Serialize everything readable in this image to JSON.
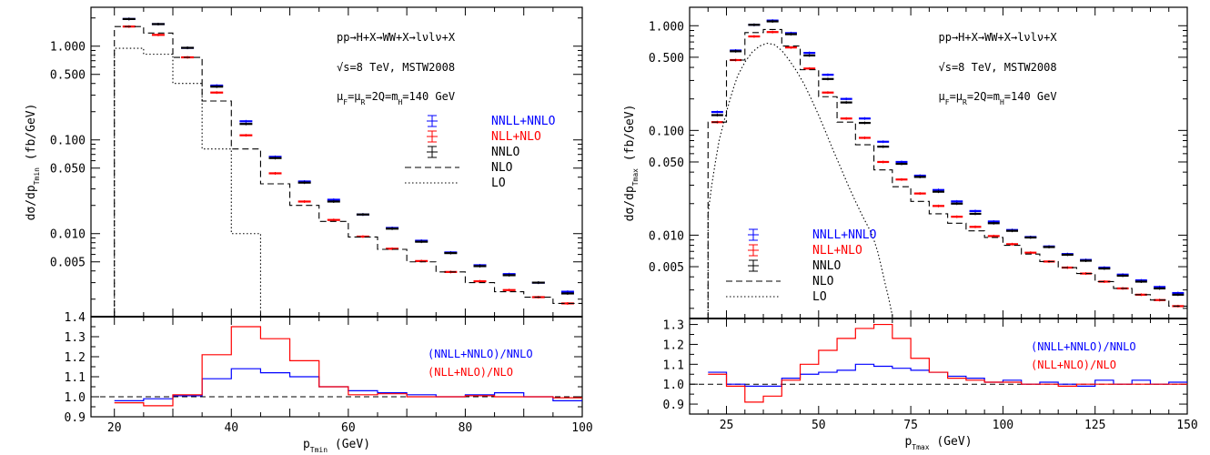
{
  "colors": {
    "nnll": "#0000ff",
    "nll": "#ff0000",
    "nnlo": "#000000",
    "nlo": "#000000",
    "lo": "#000000"
  },
  "chart_data": [
    {
      "type": "line",
      "main": {
        "ylabel": "dσ/dp_Tmin (fb/GeV)",
        "yscale": "log",
        "xlim": [
          16,
          100
        ],
        "ylim": [
          0.0013,
          2.6
        ],
        "yticks": [
          1.0,
          0.5,
          0.1,
          0.05,
          0.01,
          0.005
        ],
        "ytick_labels": [
          "1.000",
          "0.500",
          "0.100",
          "0.050",
          "0.010",
          "0.005"
        ],
        "annotations": [
          "pp→H+X→WW+X→lνlν+X",
          "√s=8 TeV, MSTW2008",
          "μ_F=μ_R=2Q=m_H=140 GeV"
        ],
        "legend": [
          {
            "label": "NNLL+NNLO",
            "style": "errorbar",
            "color": "#0000ff"
          },
          {
            "label": "NLL+NLO",
            "style": "errorbar",
            "color": "#ff0000"
          },
          {
            "label": "NNLO",
            "style": "errorbar",
            "color": "#000000"
          },
          {
            "label": "NLO",
            "style": "dashed",
            "color": "#000000"
          },
          {
            "label": "LO",
            "style": "dotted",
            "color": "#000000"
          }
        ],
        "bin_edges": [
          20,
          25,
          30,
          35,
          40,
          45,
          50,
          55,
          60,
          65,
          70,
          75,
          80,
          85,
          90,
          95,
          100
        ],
        "series": [
          {
            "name": "NNLL+NNLO",
            "style": "points",
            "values": [
              1.95,
              1.72,
              0.96,
              0.38,
              0.158,
              0.066,
              0.036,
              0.023,
              0.016,
              0.0115,
              0.0084,
              0.0063,
              0.0046,
              0.0037,
              0.003,
              0.0024
            ]
          },
          {
            "name": "NLL+NLO",
            "style": "points",
            "values": [
              1.62,
              1.32,
              0.76,
              0.32,
              0.112,
              0.044,
              0.022,
              0.014,
              0.0093,
              0.0069,
              0.0051,
              0.0039,
              0.0031,
              0.0025,
              0.0021,
              0.0018
            ]
          },
          {
            "name": "NNLO",
            "style": "points",
            "values": [
              1.95,
              1.72,
              0.96,
              0.37,
              0.148,
              0.064,
              0.035,
              0.022,
              0.016,
              0.0113,
              0.0082,
              0.0062,
              0.0045,
              0.0036,
              0.003,
              0.0023
            ]
          },
          {
            "name": "NLO",
            "style": "dashed",
            "values": [
              1.62,
              1.38,
              0.76,
              0.26,
              0.08,
              0.034,
              0.02,
              0.0135,
              0.0092,
              0.0068,
              0.005,
              0.0039,
              0.003,
              0.0024,
              0.0021,
              0.0018
            ]
          },
          {
            "name": "LO",
            "style": "dotted",
            "values": [
              0.95,
              0.82,
              0.4,
              0.08,
              0.01,
              0.0005
            ]
          }
        ]
      },
      "ratio": {
        "xlabel": "p_Tmin (GeV)",
        "ylim": [
          0.9,
          1.4
        ],
        "yticks": [
          0.9,
          1.0,
          1.1,
          1.2,
          1.3,
          1.4
        ],
        "ytick_labels": [
          "0.9",
          "1.0",
          "1.1",
          "1.2",
          "1.3",
          "1.4"
        ],
        "xticks": [
          20,
          40,
          60,
          80,
          100
        ],
        "xtick_labels": [
          "20",
          "40",
          "60",
          "80",
          "100"
        ],
        "legend": [
          {
            "label": "(NNLL+NNLO)/NNLO",
            "color": "#0000ff"
          },
          {
            "label": "(NLL+NLO)/NLO",
            "color": "#ff0000"
          }
        ],
        "series": [
          {
            "name": "(NNLL+NNLO)/NNLO",
            "values": [
              0.98,
              0.99,
              1.005,
              1.09,
              1.14,
              1.12,
              1.1,
              1.05,
              1.03,
              1.02,
              1.01,
              1.0,
              1.01,
              1.02,
              1.0,
              0.98
            ]
          },
          {
            "name": "(NLL+NLO)/NLO",
            "values": [
              0.97,
              0.955,
              1.01,
              1.21,
              1.35,
              1.29,
              1.18,
              1.05,
              1.01,
              1.015,
              1.0,
              1.0,
              1.005,
              1.0,
              1.0,
              0.995
            ]
          }
        ]
      }
    },
    {
      "type": "line",
      "main": {
        "ylabel": "dσ/dp_Tmax (fb/GeV)",
        "yscale": "log",
        "xlim": [
          15,
          150
        ],
        "ylim": [
          0.0016,
          1.5
        ],
        "yticks": [
          1.0,
          0.5,
          0.1,
          0.05,
          0.01,
          0.005
        ],
        "ytick_labels": [
          "1.000",
          "0.500",
          "0.100",
          "0.050",
          "0.010",
          "0.005"
        ],
        "annotations": [
          "pp→H+X→WW+X→lνlν+X",
          "√s=8 TeV, MSTW2008",
          "μ_F=μ_R=2Q=m_H=140 GeV"
        ],
        "legend": [
          {
            "label": "NNLL+NNLO",
            "style": "errorbar",
            "color": "#0000ff"
          },
          {
            "label": "NLL+NLO",
            "style": "errorbar",
            "color": "#ff0000"
          },
          {
            "label": "NNLO",
            "style": "errorbar",
            "color": "#000000"
          },
          {
            "label": "NLO",
            "style": "dashed",
            "color": "#000000"
          },
          {
            "label": "LO",
            "style": "dotted",
            "color": "#000000"
          }
        ],
        "bin_edges": [
          20,
          25,
          30,
          35,
          40,
          45,
          50,
          55,
          60,
          65,
          70,
          75,
          80,
          85,
          90,
          95,
          100,
          105,
          110,
          115,
          120,
          125,
          130,
          135,
          140,
          145,
          150
        ],
        "series": [
          {
            "name": "NNLL+NNLO",
            "style": "points",
            "values": [
              0.15,
              0.58,
              1.02,
              1.12,
              0.85,
              0.55,
              0.34,
              0.2,
              0.13,
              0.078,
              0.05,
              0.037,
              0.027,
              0.021,
              0.017,
              0.0135,
              0.0112,
              0.0096,
              0.0078,
              0.0066,
              0.0058,
              0.0049,
              0.0042,
              0.0037,
              0.0032,
              0.0028
            ]
          },
          {
            "name": "NLL+NLO",
            "style": "points",
            "values": [
              0.12,
              0.47,
              0.79,
              0.87,
              0.62,
              0.39,
              0.23,
              0.13,
              0.085,
              0.05,
              0.034,
              0.025,
              0.019,
              0.015,
              0.012,
              0.0098,
              0.0082,
              0.0068,
              0.0056,
              0.0049,
              0.0043,
              0.0036,
              0.0031,
              0.0027,
              0.0024,
              0.0021
            ]
          },
          {
            "name": "NNLO",
            "style": "points",
            "values": [
              0.14,
              0.57,
              1.02,
              1.1,
              0.83,
              0.52,
              0.31,
              0.185,
              0.118,
              0.07,
              0.048,
              0.036,
              0.026,
              0.02,
              0.016,
              0.013,
              0.011,
              0.0095,
              0.0077,
              0.0065,
              0.0057,
              0.0048,
              0.0041,
              0.0036,
              0.0031,
              0.0027
            ]
          },
          {
            "name": "NLO",
            "style": "dashed",
            "values": [
              0.12,
              0.47,
              0.86,
              0.92,
              0.64,
              0.38,
              0.21,
              0.12,
              0.073,
              0.042,
              0.029,
              0.021,
              0.016,
              0.013,
              0.011,
              0.0095,
              0.008,
              0.0066,
              0.0056,
              0.0049,
              0.0043,
              0.0036,
              0.0031,
              0.0027,
              0.0024,
              0.0021
            ]
          }
        ],
        "lo_curve": {
          "x": [
            20,
            21,
            22,
            23,
            24,
            25,
            26,
            27,
            28,
            30,
            32,
            34,
            36,
            38,
            40,
            42,
            44,
            46,
            48,
            50,
            52,
            54,
            56,
            58,
            60,
            62,
            64,
            65,
            66,
            67,
            68,
            69,
            70
          ],
          "y": [
            0.016,
            0.03,
            0.05,
            0.08,
            0.11,
            0.15,
            0.2,
            0.26,
            0.33,
            0.45,
            0.56,
            0.64,
            0.68,
            0.66,
            0.58,
            0.47,
            0.37,
            0.28,
            0.2,
            0.14,
            0.095,
            0.064,
            0.044,
            0.03,
            0.021,
            0.015,
            0.011,
            0.009,
            0.007,
            0.005,
            0.0035,
            0.0025,
            0.0017
          ]
        }
      },
      "ratio": {
        "xlabel": "p_Tmax (GeV)",
        "ylim": [
          0.85,
          1.33
        ],
        "yticks": [
          0.9,
          1.0,
          1.1,
          1.2,
          1.3
        ],
        "ytick_labels": [
          "0.9",
          "1.0",
          "1.1",
          "1.2",
          "1.3"
        ],
        "xticks": [
          25,
          50,
          75,
          100,
          125,
          150
        ],
        "xtick_labels": [
          "25",
          "50",
          "75",
          "100",
          "125",
          "150"
        ],
        "legend": [
          {
            "label": "(NNLL+NNLO)/NNLO",
            "color": "#0000ff"
          },
          {
            "label": "(NLL+NLO)/NLO",
            "color": "#ff0000"
          }
        ],
        "series": [
          {
            "name": "(NNLL+NNLO)/NNLO",
            "values": [
              1.06,
              1.0,
              0.99,
              0.99,
              1.03,
              1.05,
              1.06,
              1.07,
              1.1,
              1.09,
              1.08,
              1.07,
              1.06,
              1.04,
              1.03,
              1.01,
              1.02,
              1.0,
              1.01,
              1.0,
              0.99,
              1.02,
              1.0,
              1.02,
              1.0,
              1.01
            ]
          },
          {
            "name": "(NLL+NLO)/NLO",
            "values": [
              1.05,
              0.99,
              0.91,
              0.94,
              1.02,
              1.1,
              1.17,
              1.23,
              1.28,
              1.3,
              1.23,
              1.13,
              1.06,
              1.03,
              1.02,
              1.01,
              1.01,
              1.0,
              1.0,
              0.99,
              1.0,
              1.0,
              1.0,
              1.0,
              1.0,
              1.0
            ]
          }
        ]
      }
    }
  ]
}
